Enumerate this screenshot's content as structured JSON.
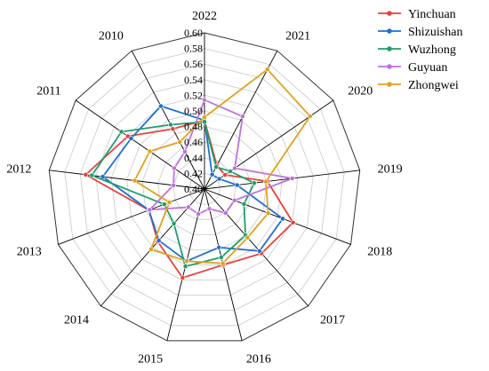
{
  "chart_data": {
    "type": "radar",
    "categories": [
      "2022",
      "2021",
      "2020",
      "2019",
      "2018",
      "2017",
      "2016",
      "2015",
      "2014",
      "2013",
      "2012",
      "2011",
      "2010"
    ],
    "r_range": [
      0.4,
      0.6
    ],
    "r_ticks": [
      "0.40",
      "0.42",
      "0.44",
      "0.46",
      "0.48",
      "0.50",
      "0.52",
      "0.54",
      "0.56",
      "0.58",
      "0.60"
    ],
    "grid": true,
    "legend_position": "top-right",
    "series": [
      {
        "name": "Yinchuan",
        "color": "#e8413c",
        "values": [
          0.488,
          0.434,
          0.432,
          0.481,
          0.521,
          0.51,
          0.5,
          0.517,
          0.49,
          0.476,
          0.553,
          0.519,
          0.487
        ]
      },
      {
        "name": "Shizuishan",
        "color": "#1f6fd1",
        "values": [
          0.488,
          0.421,
          0.423,
          0.442,
          0.507,
          0.506,
          0.477,
          0.495,
          0.488,
          0.476,
          0.531,
          0.514,
          0.52
        ]
      },
      {
        "name": "Wuzhong",
        "color": "#1d9e6a",
        "values": [
          0.486,
          0.432,
          0.44,
          0.464,
          0.454,
          0.479,
          0.49,
          0.502,
          0.459,
          0.455,
          0.545,
          0.529,
          0.493
        ]
      },
      {
        "name": "Guyuan",
        "color": "#c071dc",
        "values": [
          0.514,
          0.505,
          0.447,
          0.513,
          0.441,
          0.441,
          0.426,
          0.433,
          0.431,
          0.475,
          0.44,
          0.447,
          0.454
        ]
      },
      {
        "name": "Zhongwei",
        "color": "#e0a11c",
        "values": [
          0.492,
          0.573,
          0.564,
          0.479,
          0.487,
          0.483,
          0.498,
          0.495,
          0.503,
          0.448,
          0.49,
          0.485,
          0.468
        ]
      }
    ]
  }
}
